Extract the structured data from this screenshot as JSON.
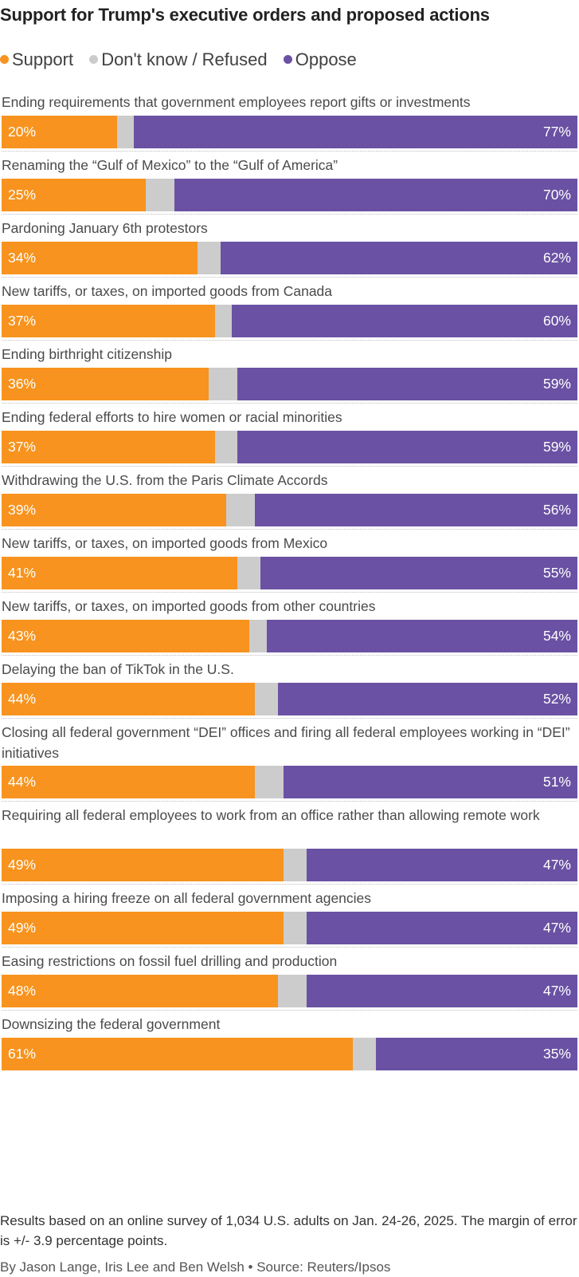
{
  "title": "Support for Trump's executive orders and proposed actions",
  "legend": {
    "support": "Support",
    "dont_know": "Don't know / Refused",
    "oppose": "Oppose"
  },
  "colors": {
    "support": "#F7931E",
    "dont_know": "#CCCCCC",
    "oppose": "#6A51A3"
  },
  "chart_data": {
    "type": "bar",
    "orientation": "horizontal",
    "stacked": true,
    "normalized": true,
    "value_unit": "%",
    "categories": [
      "Ending requirements that government employees report gifts or investments",
      "Renaming the “Gulf of Mexico” to the “Gulf of America”",
      "Pardoning January 6th protestors",
      "New tariffs, or taxes, on imported goods from Canada",
      "Ending birthright citizenship",
      "Ending federal efforts to hire women or racial minorities",
      "Withdrawing the U.S. from the Paris Climate Accords",
      "New tariffs, or taxes, on imported goods from Mexico",
      "New tariffs, or taxes, on imported goods from other countries",
      "Delaying the ban of TikTok in the U.S.",
      "Closing all federal government “DEI” offices and firing all federal employees working in “DEI” initiatives",
      "Requiring all federal employees to work from an office rather than allowing remote work",
      "Imposing a hiring freeze on all federal government agencies",
      "Easing restrictions on fossil fuel drilling and production",
      "Downsizing the federal government"
    ],
    "series": [
      {
        "name": "Support",
        "values": [
          20,
          25,
          34,
          37,
          36,
          37,
          39,
          41,
          43,
          44,
          44,
          49,
          49,
          48,
          61
        ]
      },
      {
        "name": "Don't know / Refused",
        "values": [
          3,
          5,
          4,
          3,
          5,
          4,
          5,
          4,
          3,
          4,
          5,
          4,
          4,
          5,
          4
        ]
      },
      {
        "name": "Oppose",
        "values": [
          77,
          70,
          62,
          60,
          59,
          59,
          56,
          55,
          54,
          52,
          51,
          47,
          47,
          47,
          35
        ]
      }
    ],
    "value_labels": {
      "support": [
        "20%",
        "25%",
        "34%",
        "37%",
        "36%",
        "37%",
        "39%",
        "41%",
        "43%",
        "44%",
        "44%",
        "49%",
        "49%",
        "48%",
        "61%"
      ],
      "oppose": [
        "77%",
        "70%",
        "62%",
        "60%",
        "59%",
        "59%",
        "56%",
        "55%",
        "54%",
        "52%",
        "51%",
        "47%",
        "47%",
        "47%",
        "35%"
      ]
    },
    "legend_position": "top-left",
    "grid": false
  },
  "note": "Results based on an online survey of 1,034 U.S. adults on Jan. 24-26, 2025. The margin of error is +/- 3.9 percentage points.",
  "credit": "By Jason Lange, Iris Lee and Ben Welsh • Source: Reuters/Ipsos"
}
